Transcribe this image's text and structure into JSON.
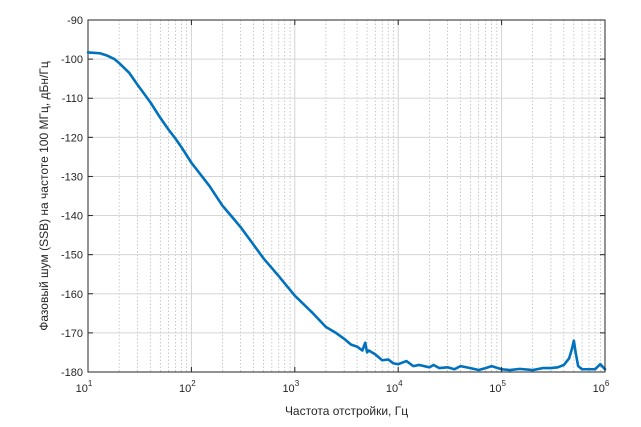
{
  "chart_data": {
    "type": "line",
    "title": "",
    "xlabel": "Частота отстройки, Гц",
    "ylabel": "Фазовый шум (SSB) на частоте 100 МГц, дБн/Гц",
    "xscale": "log",
    "xlim": [
      10,
      1000000
    ],
    "ylim": [
      -180,
      -90
    ],
    "grid": true,
    "minor_grid": true,
    "legend": "none",
    "x_ticks": [
      {
        "value": 10,
        "base": "10",
        "exp": "1"
      },
      {
        "value": 100,
        "base": "10",
        "exp": "2"
      },
      {
        "value": 1000,
        "base": "10",
        "exp": "3"
      },
      {
        "value": 10000,
        "base": "10",
        "exp": "4"
      },
      {
        "value": 100000,
        "base": "10",
        "exp": "5"
      },
      {
        "value": 1000000,
        "base": "10",
        "exp": "6"
      }
    ],
    "y_ticks": [
      -90,
      -100,
      -110,
      -120,
      -130,
      -140,
      -150,
      -160,
      -170,
      -180
    ],
    "series": [
      {
        "color": "#0072BD",
        "x": [
          10,
          13,
          15,
          18,
          20,
          25,
          30,
          40,
          50,
          60,
          70,
          80,
          100,
          150,
          200,
          250,
          300,
          400,
          500,
          700,
          1000,
          1500,
          2000,
          2500,
          3000,
          3500,
          4000,
          4500,
          4800,
          5000,
          5200,
          6000,
          7000,
          8000,
          9000,
          10000,
          12000,
          14000,
          16000,
          20000,
          22000,
          25000,
          30000,
          35000,
          40000,
          50000,
          60000,
          70000,
          80000,
          100000,
          120000,
          150000,
          200000,
          250000,
          300000,
          350000,
          400000,
          450000,
          480000,
          500000,
          520000,
          550000,
          600000,
          700000,
          800000,
          900000,
          1000000
        ],
        "y": [
          -98.3,
          -98.5,
          -99,
          -100,
          -101,
          -103.5,
          -106.5,
          -111,
          -115,
          -118,
          -120.3,
          -122.5,
          -126.5,
          -132.5,
          -137.5,
          -140.5,
          -143,
          -147.5,
          -151,
          -155.5,
          -160.5,
          -165,
          -168.5,
          -170,
          -171.5,
          -173,
          -173.5,
          -174.5,
          -172.5,
          -175,
          -174.5,
          -175.5,
          -177,
          -176.8,
          -177.8,
          -178,
          -177.2,
          -178.5,
          -178.2,
          -178.8,
          -178.2,
          -179,
          -178.8,
          -179.3,
          -178.5,
          -179,
          -179.5,
          -179,
          -178.5,
          -179.3,
          -179.5,
          -179.2,
          -179.5,
          -179,
          -179,
          -178.8,
          -178.2,
          -176.5,
          -174,
          -172,
          -175,
          -178.5,
          -179.3,
          -179.3,
          -179.3,
          -178,
          -179.3
        ]
      }
    ]
  }
}
